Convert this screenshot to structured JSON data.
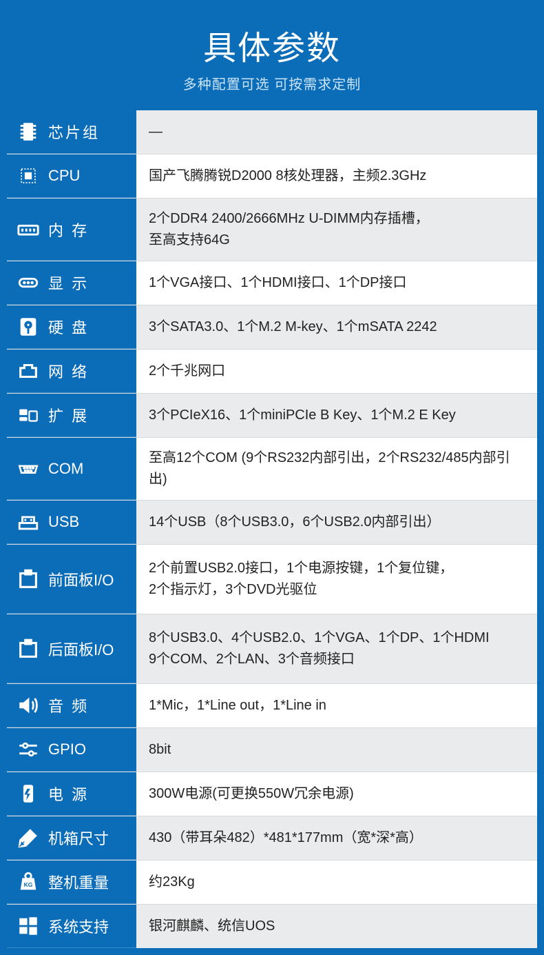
{
  "header": {
    "title": "具体参数",
    "subtitle": "多种配置可选 可按需求定制"
  },
  "colors": {
    "brand": "#0b6cb8",
    "brand_border": "#3a8cc9",
    "row_alt": "#e9ebec",
    "row_white": "#ffffff",
    "text": "#222222",
    "subtitle": "#c9e3f6",
    "divider": "#d5d9dc"
  },
  "rows": [
    {
      "icon": "chip",
      "label": "芯片组",
      "spacing": "wide",
      "value": "—",
      "bg": "alt",
      "tall": false
    },
    {
      "icon": "cpu",
      "label": "CPU",
      "spacing": "tight",
      "value": "国产飞腾腾锐D2000 8核处理器，主频2.3GHz",
      "bg": "white",
      "tall": false
    },
    {
      "icon": "ram",
      "label": "内 存",
      "spacing": "wide",
      "value": "2个DDR4 2400/2666MHz U-DIMM内存插槽，\n至高支持64G",
      "bg": "alt",
      "tall": false
    },
    {
      "icon": "display",
      "label": "显 示",
      "spacing": "wide",
      "value": "1个VGA接口、1个HDMI接口、1个DP接口",
      "bg": "white",
      "tall": false
    },
    {
      "icon": "hdd",
      "label": "硬 盘",
      "spacing": "wide",
      "value": "3个SATA3.0、1个M.2 M-key、1个mSATA 2242",
      "bg": "alt",
      "tall": false
    },
    {
      "icon": "network",
      "label": "网 络",
      "spacing": "wide",
      "value": "2个千兆网口",
      "bg": "white",
      "tall": false
    },
    {
      "icon": "expand",
      "label": "扩 展",
      "spacing": "wide",
      "value": "3个PCIeX16、1个miniPCIe B Key、1个M.2 E Key",
      "bg": "alt",
      "tall": false
    },
    {
      "icon": "com",
      "label": "COM",
      "spacing": "tight",
      "value": "至高12个COM (9个RS232内部引出，2个RS232/485内部引出)",
      "bg": "white",
      "tall": false
    },
    {
      "icon": "usb",
      "label": "USB",
      "spacing": "tight",
      "value": "14个USB（8个USB3.0，6个USB2.0内部引出）",
      "bg": "alt",
      "tall": false
    },
    {
      "icon": "port",
      "label": "前面板I/O",
      "spacing": "tight",
      "value": "2个前置USB2.0接口，1个电源按键，1个复位键，\n2个指示灯，3个DVD光驱位",
      "bg": "white",
      "tall": true
    },
    {
      "icon": "port",
      "label": "后面板I/O",
      "spacing": "tight",
      "value": "8个USB3.0、4个USB2.0、1个VGA、1个DP、1个HDMI\n9个COM、2个LAN、3个音频接口",
      "bg": "alt",
      "tall": true
    },
    {
      "icon": "audio",
      "label": "音 频",
      "spacing": "wide",
      "value": "1*Mic，1*Line out，1*Line in",
      "bg": "white",
      "tall": false
    },
    {
      "icon": "gpio",
      "label": "GPIO",
      "spacing": "tight",
      "value": "8bit",
      "bg": "alt",
      "tall": false
    },
    {
      "icon": "power",
      "label": "电 源",
      "spacing": "wide",
      "value": "300W电源(可更换550W冗余电源)",
      "bg": "white",
      "tall": false
    },
    {
      "icon": "ruler",
      "label": "机箱尺寸",
      "spacing": "tight",
      "value": "430（带耳朵482）*481*177mm（宽*深*高）",
      "bg": "alt",
      "tall": false
    },
    {
      "icon": "weight",
      "label": "整机重量",
      "spacing": "tight",
      "value": "约23Kg",
      "bg": "white",
      "tall": false
    },
    {
      "icon": "os",
      "label": "系统支持",
      "spacing": "tight",
      "value": "银河麒麟、统信UOS",
      "bg": "alt",
      "tall": false
    }
  ]
}
